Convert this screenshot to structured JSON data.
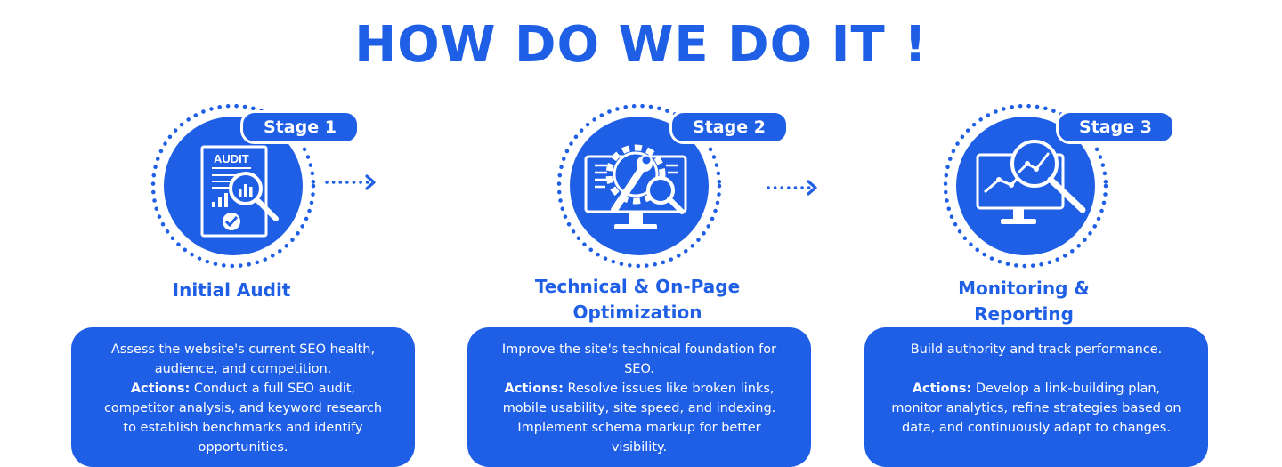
{
  "title": "HOW DO WE DO IT !",
  "stages": [
    {
      "badge": "Stage 1",
      "name_lines": [
        "Initial Audit"
      ],
      "icon": "audit-document-magnifier-icon",
      "icon_text": "AUDIT",
      "description": "Assess the website's current SEO health, audience, and competition.",
      "actions_label": "Actions:",
      "actions_text": " Conduct a full SEO audit, competitor analysis, and keyword research to establish benchmarks and identify opportunities."
    },
    {
      "badge": "Stage 2",
      "name_lines": [
        "Technical & On-Page",
        "Optimization"
      ],
      "icon": "gear-wrench-monitor-icon",
      "description": "Improve the site's technical foundation for SEO.",
      "actions_label": "Actions:",
      "actions_text": " Resolve issues like broken links, mobile usability, site speed, and indexing. Implement schema markup for better visibility."
    },
    {
      "badge": "Stage 3",
      "name_lines": [
        "Monitoring &",
        "Reporting"
      ],
      "icon": "monitor-chart-magnifier-icon",
      "description": "Build authority and track performance.",
      "actions_label": "Actions:",
      "actions_text": " Develop a link-building plan, monitor analytics, refine strategies based on data, and continuously adapt to changes."
    }
  ],
  "colors": {
    "accent": "#1f5fe6",
    "background": "#ffffff",
    "card_text": "#ffffff"
  }
}
